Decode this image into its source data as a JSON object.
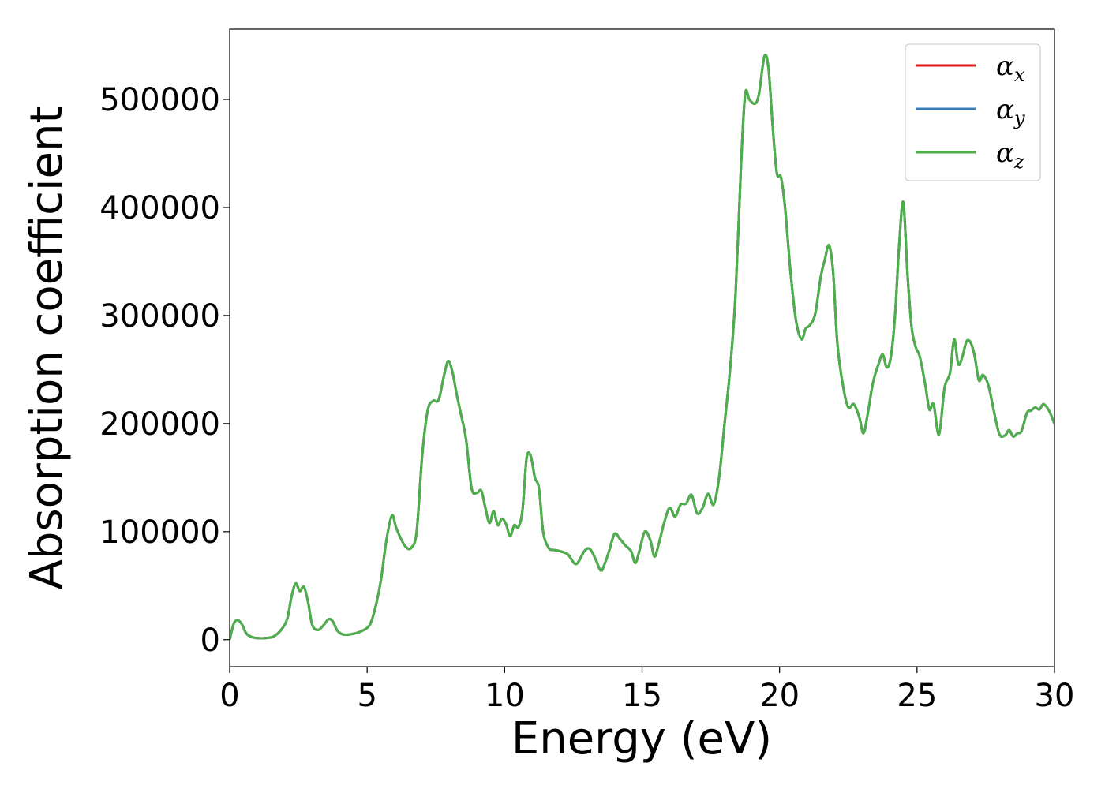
{
  "chart_data": {
    "type": "line",
    "xlabel": "Energy (eV)",
    "ylabel": "Absorption coefficient",
    "xlim": [
      0,
      30
    ],
    "ylim": [
      -25000,
      565000
    ],
    "x_ticks": [
      "0",
      "5",
      "10",
      "15",
      "20",
      "25",
      "30"
    ],
    "y_ticks": [
      "0",
      "100000",
      "200000",
      "300000",
      "400000",
      "500000"
    ],
    "grid": false,
    "legend_position": "top-right",
    "series": [
      {
        "name": "α",
        "sub": "x",
        "color": "#e41a1c"
      },
      {
        "name": "α",
        "sub": "y",
        "color": "#377eb8"
      },
      {
        "name": "α",
        "sub": "z",
        "color": "#4daf4a"
      }
    ],
    "x": [
      0,
      0.15,
      0.3,
      0.45,
      0.6,
      0.8,
      1.0,
      1.3,
      1.6,
      1.9,
      2.1,
      2.25,
      2.4,
      2.55,
      2.7,
      2.85,
      3.0,
      3.2,
      3.4,
      3.6,
      3.75,
      3.9,
      4.1,
      4.4,
      4.8,
      5.1,
      5.3,
      5.5,
      5.7,
      5.9,
      6.05,
      6.2,
      6.4,
      6.6,
      6.8,
      7.0,
      7.2,
      7.4,
      7.6,
      7.8,
      7.95,
      8.1,
      8.25,
      8.4,
      8.6,
      8.8,
      9.0,
      9.15,
      9.3,
      9.45,
      9.6,
      9.75,
      9.9,
      10.05,
      10.2,
      10.35,
      10.5,
      10.65,
      10.8,
      10.95,
      11.1,
      11.25,
      11.4,
      11.6,
      11.8,
      12.0,
      12.3,
      12.6,
      12.9,
      13.1,
      13.3,
      13.5,
      13.65,
      13.8,
      14.0,
      14.2,
      14.4,
      14.6,
      14.75,
      14.9,
      15.1,
      15.3,
      15.45,
      15.6,
      15.8,
      16.0,
      16.2,
      16.4,
      16.6,
      16.8,
      17.0,
      17.2,
      17.4,
      17.6,
      17.8,
      18.0,
      18.2,
      18.4,
      18.6,
      18.75,
      18.9,
      19.1,
      19.25,
      19.45,
      19.6,
      19.75,
      19.9,
      20.05,
      20.2,
      20.4,
      20.6,
      20.8,
      20.95,
      21.1,
      21.3,
      21.5,
      21.65,
      21.8,
      21.95,
      22.1,
      22.3,
      22.5,
      22.7,
      22.9,
      23.05,
      23.2,
      23.4,
      23.6,
      23.75,
      23.9,
      24.05,
      24.2,
      24.35,
      24.5,
      24.65,
      24.8,
      24.95,
      25.1,
      25.3,
      25.45,
      25.6,
      25.8,
      26.0,
      26.2,
      26.35,
      26.5,
      26.65,
      26.8,
      26.95,
      27.1,
      27.25,
      27.4,
      27.6,
      27.8,
      28.0,
      28.2,
      28.35,
      28.5,
      28.65,
      28.8,
      29.0,
      29.15,
      29.3,
      29.45,
      29.6,
      29.8,
      30.0
    ],
    "y": [
      0,
      15000,
      18000,
      14000,
      6000,
      2500,
      1500,
      1500,
      3000,
      10000,
      20000,
      40000,
      52000,
      45000,
      49000,
      35000,
      14000,
      9000,
      13000,
      19000,
      17000,
      9000,
      5000,
      5000,
      8000,
      14000,
      30000,
      55000,
      92000,
      115000,
      104000,
      95000,
      86000,
      85000,
      100000,
      170000,
      212000,
      221000,
      222000,
      245000,
      258000,
      248000,
      228000,
      210000,
      185000,
      140000,
      136000,
      138000,
      122000,
      108000,
      119000,
      106000,
      112000,
      107000,
      96000,
      106000,
      104000,
      120000,
      168000,
      170000,
      150000,
      140000,
      100000,
      85000,
      83000,
      82000,
      79000,
      70000,
      82000,
      84000,
      75000,
      64000,
      71000,
      82000,
      98000,
      93000,
      87000,
      82000,
      71000,
      82000,
      100000,
      92000,
      77000,
      88000,
      108000,
      122000,
      114000,
      125000,
      126000,
      134000,
      117000,
      122000,
      135000,
      125000,
      150000,
      200000,
      250000,
      320000,
      440000,
      505000,
      500000,
      496000,
      505000,
      540000,
      528000,
      475000,
      432000,
      428000,
      400000,
      340000,
      295000,
      278000,
      288000,
      291000,
      302000,
      336000,
      352000,
      365000,
      340000,
      275000,
      236000,
      215000,
      218000,
      206000,
      191000,
      208000,
      238000,
      255000,
      264000,
      252000,
      262000,
      300000,
      365000,
      405000,
      340000,
      290000,
      271000,
      262000,
      236000,
      213000,
      218000,
      190000,
      233000,
      247000,
      278000,
      255000,
      262000,
      276000,
      275000,
      262000,
      240000,
      245000,
      235000,
      211000,
      190000,
      189000,
      194000,
      188000,
      191000,
      193000,
      210000,
      212000,
      215000,
      213000,
      218000,
      212000,
      200000
    ]
  }
}
